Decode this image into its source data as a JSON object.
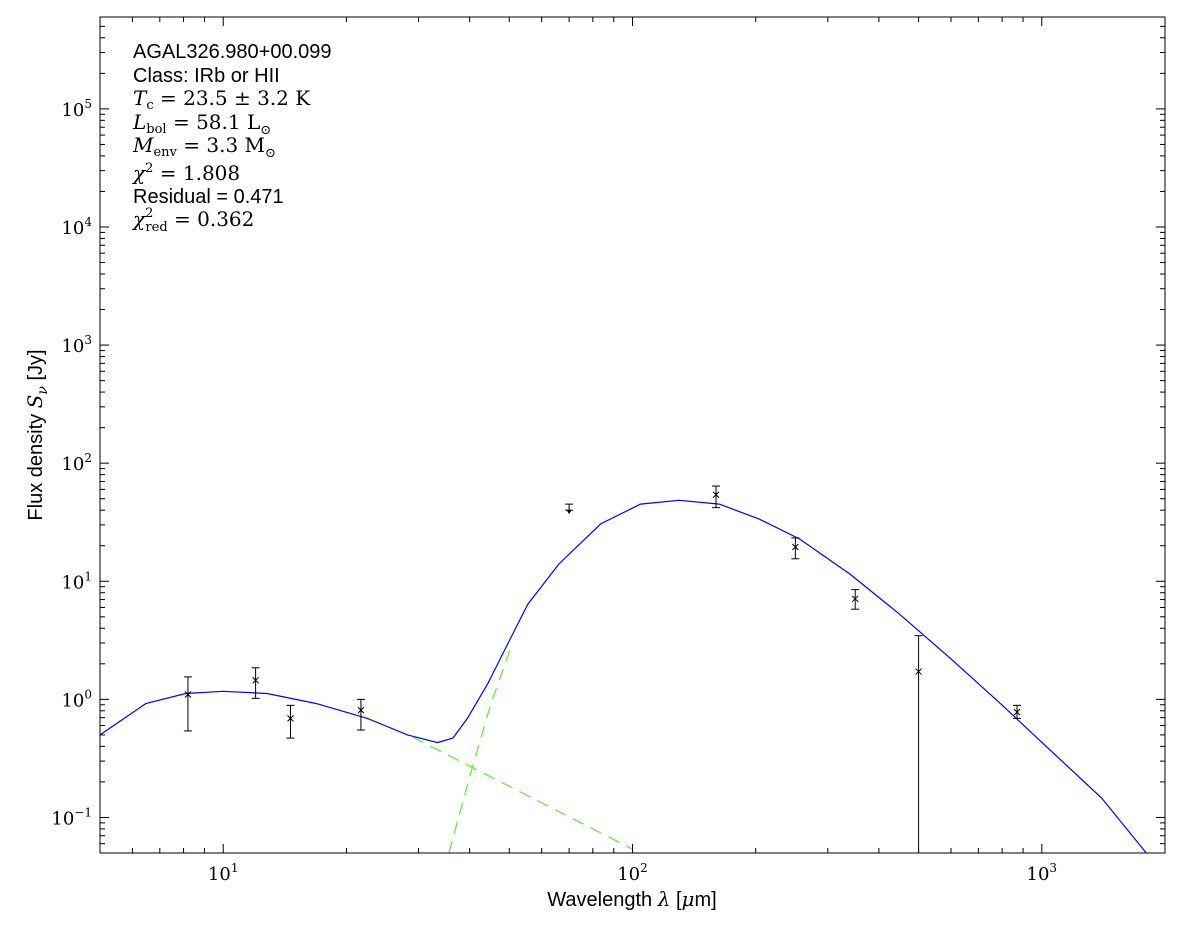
{
  "chart_data": {
    "type": "line",
    "xlabel": "Wavelength λ [μm]",
    "ylabel": "Flux density S_ν [Jy]",
    "xlabel_parts": {
      "pre": "Wavelength ",
      "sym": "λ",
      "post": " [",
      "mu": "μ",
      "unit": "m]"
    },
    "ylabel_parts": {
      "pre": "Flux density ",
      "sym": "S",
      "sub": "ν",
      "post": " [Jy]"
    },
    "xscale": "log",
    "yscale": "log",
    "xlim": [
      5,
      2000
    ],
    "ylim": [
      0.05,
      600000
    ],
    "grid": false,
    "x_ticks": [
      {
        "base": "10",
        "exp": "1",
        "value": 10
      },
      {
        "base": "10",
        "exp": "2",
        "value": 100
      },
      {
        "base": "10",
        "exp": "3",
        "value": 1000
      }
    ],
    "y_ticks": [
      {
        "base": "10",
        "exp": "5",
        "value": 100000
      },
      {
        "base": "10",
        "exp": "4",
        "value": 10000
      },
      {
        "base": "10",
        "exp": "3",
        "value": 1000
      },
      {
        "base": "10",
        "exp": "2",
        "value": 100
      },
      {
        "base": "10",
        "exp": "1",
        "value": 10
      },
      {
        "base": "10",
        "exp": "0",
        "value": 1
      },
      {
        "base": "10",
        "exp": "−1",
        "value": 0.1
      }
    ],
    "annotations": {
      "source": "AGAL326.980+00.099",
      "class": "Class: IRb or HII",
      "tc": {
        "sym": "T",
        "sub": "c",
        "rest": " = 23.5 ± 3.2 K"
      },
      "lbol": {
        "sym": "L",
        "sub": "bol",
        "rest": " = 58.1 L",
        "rest_sub": "⊙"
      },
      "menv": {
        "sym": "M",
        "sub": "env",
        "rest": " = 3.3 M",
        "rest_sub": "⊙"
      },
      "chi2": {
        "sym": "χ",
        "sup": "2",
        "rest": " = 1.808"
      },
      "residual": "Residual = 0.471",
      "chi2red": {
        "sym": "χ",
        "sup": "2",
        "sub": "red",
        "rest": " = 0.362"
      }
    },
    "colors": {
      "total_model": "#0000ff",
      "components": "#55ee33",
      "data": "#000000"
    },
    "measurements": [
      {
        "x": 8.2,
        "y": 1.1,
        "yerr_low": 0.54,
        "yerr_high": 1.55,
        "upper_limit": false
      },
      {
        "x": 12,
        "y": 1.45,
        "yerr_low": 1.02,
        "yerr_high": 1.85,
        "upper_limit": false
      },
      {
        "x": 14.6,
        "y": 0.69,
        "yerr_low": 0.47,
        "yerr_high": 0.89,
        "upper_limit": false
      },
      {
        "x": 21.7,
        "y": 0.81,
        "yerr_low": 0.55,
        "yerr_high": 1.0,
        "upper_limit": false
      },
      {
        "x": 70,
        "y": 42,
        "yerr_low": 40,
        "yerr_high": 45,
        "upper_limit": true
      },
      {
        "x": 160,
        "y": 54,
        "yerr_low": 42,
        "yerr_high": 64,
        "upper_limit": false
      },
      {
        "x": 250,
        "y": 19.5,
        "yerr_low": 15.5,
        "yerr_high": 23.3,
        "upper_limit": false
      },
      {
        "x": 350,
        "y": 7.1,
        "yerr_low": 5.8,
        "yerr_high": 8.5,
        "upper_limit": false
      },
      {
        "x": 500,
        "y": 1.72,
        "yerr_low": 0.001,
        "yerr_high": 3.46,
        "upper_limit": false
      },
      {
        "x": 870,
        "y": 0.78,
        "yerr_low": 0.69,
        "yerr_high": 0.89,
        "upper_limit": false
      }
    ],
    "series": [
      {
        "style": "solid",
        "color": "#0000ff",
        "x": [
          5,
          6.47,
          8.1,
          10,
          12.8,
          16.9,
          22.5,
          28.2,
          33.4,
          36.4,
          39.5,
          44.3,
          49.6,
          55.5,
          66.1,
          83.6,
          104.6,
          130,
          163,
          204,
          256,
          340,
          448,
          600,
          790,
          1050,
          1400,
          1800
        ],
        "y": [
          0.5,
          0.92,
          1.12,
          1.17,
          1.12,
          0.92,
          0.69,
          0.5,
          0.43,
          0.47,
          0.69,
          1.36,
          2.97,
          6.4,
          14,
          30.6,
          45,
          48.5,
          45,
          33.6,
          22.8,
          11.5,
          5.3,
          2.2,
          0.93,
          0.37,
          0.146,
          0.05
        ]
      },
      {
        "style": "dashed",
        "color": "#55ee33",
        "x": [
          29,
          100
        ],
        "y": [
          0.48,
          0.054
        ]
      },
      {
        "style": "dashed",
        "color": "#55ee33",
        "x": [
          35.6,
          40,
          45,
          50.5
        ],
        "y": [
          0.05,
          0.22,
          0.9,
          2.8
        ]
      }
    ]
  }
}
